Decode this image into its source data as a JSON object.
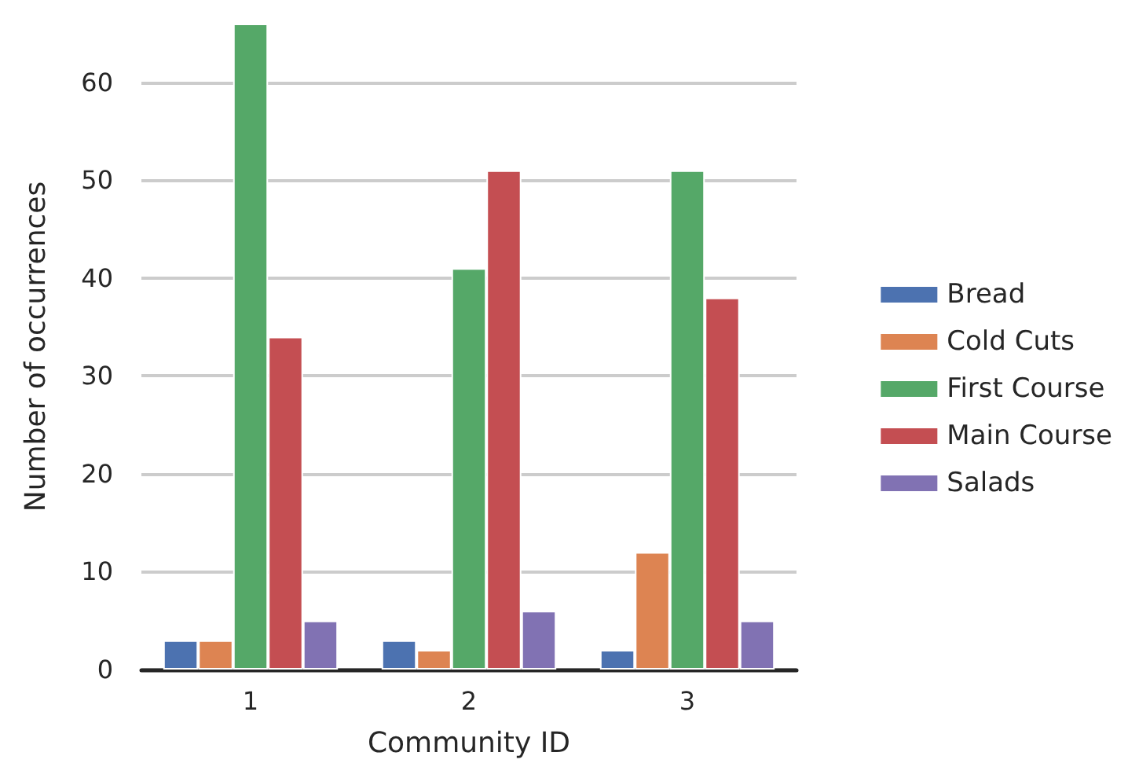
{
  "chart_data": {
    "type": "bar",
    "xlabel": "Community ID",
    "ylabel": "Number of occurrences",
    "categories": [
      "1",
      "2",
      "3"
    ],
    "series": [
      {
        "name": "Bread",
        "color": "#4c72b0",
        "values": [
          3,
          3,
          2
        ]
      },
      {
        "name": "Cold Cuts",
        "color": "#dd8452",
        "values": [
          3,
          2,
          12
        ]
      },
      {
        "name": "First Course",
        "color": "#55a868",
        "values": [
          66,
          41,
          51
        ]
      },
      {
        "name": "Main Course",
        "color": "#c44e52",
        "values": [
          34,
          51,
          38
        ]
      },
      {
        "name": "Salads",
        "color": "#8172b3",
        "values": [
          5,
          6,
          5
        ]
      }
    ],
    "ylim": [
      0,
      66
    ],
    "yticks": [
      0,
      10,
      20,
      30,
      40,
      50,
      60
    ],
    "grid": "y",
    "legend": "right"
  }
}
